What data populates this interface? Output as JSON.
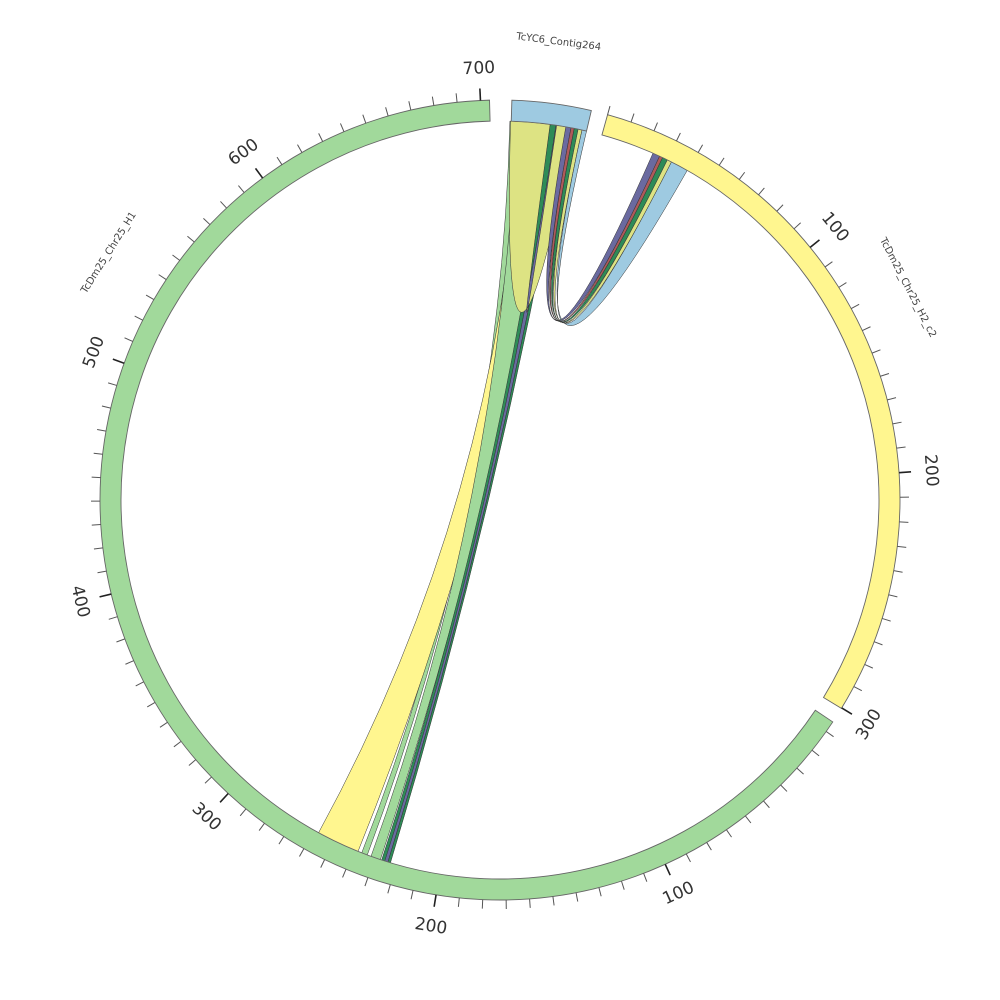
{
  "diagram": {
    "type": "circos",
    "segments": [
      {
        "id": "contig",
        "label": "TcYC6_Contig264",
        "color": "#9ecae1",
        "ticks": []
      },
      {
        "id": "h2",
        "label": "TcDm25_Chr25_H2_c2",
        "color": "#fff68f",
        "ticks": [
          {
            "value": 100,
            "label": "100"
          },
          {
            "value": 200,
            "label": "200"
          },
          {
            "value": 300,
            "label": "300"
          }
        ]
      },
      {
        "id": "h1",
        "label": "TcDm25_Chr25_H1",
        "color": "#a1d99b",
        "ticks": [
          {
            "value": 100,
            "label": "100"
          },
          {
            "value": 200,
            "label": "200"
          },
          {
            "value": 300,
            "label": "300"
          },
          {
            "value": 400,
            "label": "400"
          },
          {
            "value": 500,
            "label": "500"
          },
          {
            "value": 600,
            "label": "600"
          },
          {
            "value": 700,
            "label": "700"
          }
        ]
      }
    ],
    "links": [
      {
        "color": "#dde383"
      },
      {
        "color": "#fff68f"
      },
      {
        "color": "#9ecae1"
      },
      {
        "color": "#a1d99b"
      },
      {
        "color": "#2e8b57"
      },
      {
        "color": "#6a6aa0"
      },
      {
        "color": "#b05a5a"
      }
    ]
  }
}
